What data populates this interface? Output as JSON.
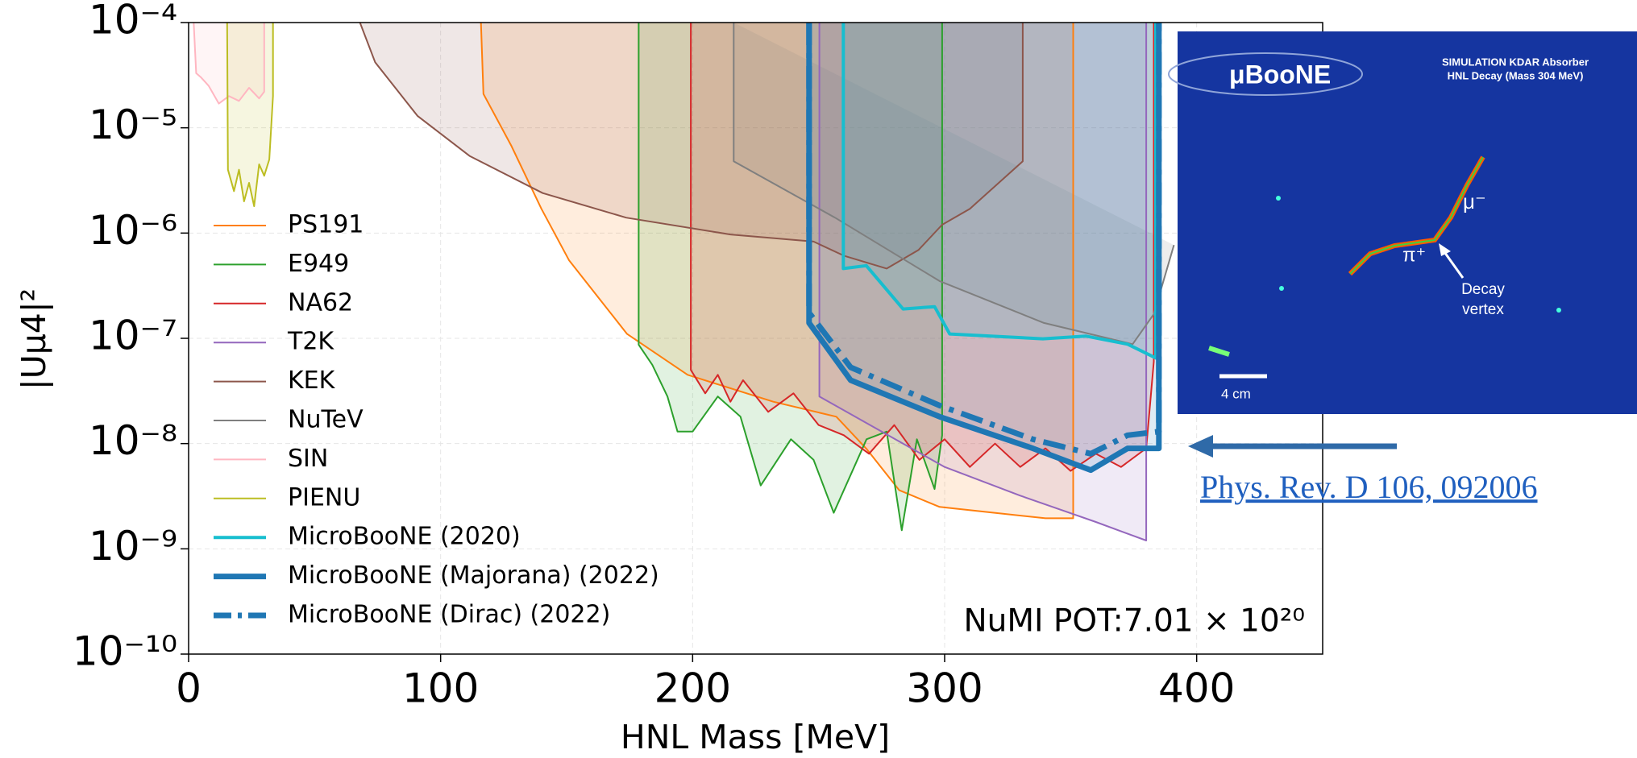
{
  "chart_data": {
    "type": "line",
    "xlabel": "HNL Mass [MeV]",
    "ylabel": "|Uμ4|²",
    "annotation": "NuMI POT:7.01 × 10²⁰",
    "yscale": "log",
    "grid": true,
    "legend": "lower left",
    "xlim": [
      0,
      450
    ],
    "xticks": [
      0,
      100,
      200,
      300,
      400
    ],
    "ylim": [
      1e-10,
      0.0001
    ],
    "yticks": [
      {
        "value": 0.0001,
        "label": "10⁻⁴"
      },
      {
        "value": 1e-05,
        "label": "10⁻⁵"
      },
      {
        "value": 1e-06,
        "label": "10⁻⁶"
      },
      {
        "value": 1e-07,
        "label": "10⁻⁷"
      },
      {
        "value": 1e-08,
        "label": "10⁻⁸"
      },
      {
        "value": 1e-09,
        "label": "10⁻⁹"
      },
      {
        "value": 1e-10,
        "label": "10⁻¹⁰"
      }
    ],
    "series": [
      {
        "name": "PS191",
        "color": "#ff7f0e",
        "fill": true,
        "linewidth": 2,
        "x": [
          116,
          117,
          128,
          140,
          151,
          174,
          198,
          232,
          257,
          269,
          282,
          298,
          340,
          351,
          351
        ],
        "values": [
          0.0001,
          2.1e-05,
          6.8e-06,
          1.7e-06,
          5.5e-07,
          1.1e-07,
          4.5e-08,
          2.5e-08,
          1.8e-08,
          8.9e-09,
          3.6e-09,
          2.5e-09,
          1.95e-09,
          1.95e-09,
          0.0001
        ]
      },
      {
        "name": "E949",
        "color": "#2ca02c",
        "fill": true,
        "linewidth": 2,
        "x": [
          178.6,
          178.6,
          184,
          190,
          194,
          200,
          210,
          219,
          227,
          239,
          248,
          256,
          269,
          277,
          283,
          289,
          296,
          299,
          299
        ],
        "values": [
          0.0001,
          8.7e-08,
          5.6e-08,
          2.8e-08,
          1.3e-08,
          1.3e-08,
          2.8e-08,
          1.8e-08,
          4e-09,
          1.1e-08,
          7e-09,
          2.2e-09,
          1.1e-08,
          1.3e-08,
          1.5e-09,
          1.1e-08,
          3.7e-09,
          1.2e-08,
          0.0001
        ]
      },
      {
        "name": "NA62",
        "color": "#d62728",
        "fill": true,
        "linewidth": 2,
        "x": [
          199.3,
          199.3,
          205,
          210,
          215,
          220,
          230,
          240,
          250,
          260,
          270,
          280,
          290,
          300,
          310,
          320,
          330,
          340,
          350,
          360,
          370,
          380,
          383,
          383
        ],
        "values": [
          0.0001,
          5e-08,
          3e-08,
          4.5e-08,
          2.5e-08,
          4e-08,
          2e-08,
          3e-08,
          1.5e-08,
          1.2e-08,
          8e-09,
          1.5e-08,
          7e-09,
          1.1e-08,
          6e-09,
          1e-08,
          6e-09,
          9e-09,
          5.5e-09,
          8e-09,
          6e-09,
          9e-09,
          6e-08,
          0.0001
        ]
      },
      {
        "name": "T2K",
        "color": "#9467bd",
        "fill": true,
        "linewidth": 2,
        "x": [
          250.3,
          250.3,
          275,
          300,
          330,
          360,
          380,
          380
        ],
        "values": [
          0.0001,
          2.8e-08,
          1.3e-08,
          6e-09,
          3.2e-09,
          1.8e-09,
          1.2e-09,
          0.0001
        ]
      },
      {
        "name": "KEK",
        "color": "#8c564b",
        "fill": true,
        "linewidth": 2,
        "x": [
          68,
          74,
          90.8,
          111.5,
          140.5,
          173.6,
          215,
          248,
          260,
          277,
          289.6,
          299,
          310,
          331,
          331
        ],
        "values": [
          0.0001,
          4.2e-05,
          1.3e-05,
          5.4e-06,
          2.4e-06,
          1.4e-06,
          9.7e-07,
          8.3e-07,
          6.1e-07,
          4.6e-07,
          6.9e-07,
          1.2e-06,
          1.7e-06,
          4.8e-06,
          0.0001
        ]
      },
      {
        "name": "NuTeV",
        "color": "#7f7f7f",
        "fill": true,
        "linewidth": 2,
        "x": [
          216.3,
          216.3,
          256.5,
          298,
          339.4,
          374.6,
          383,
          391
        ],
        "values": [
          0.0001,
          4.8e-06,
          1.4e-06,
          3.5e-07,
          1.4e-07,
          8.8e-08,
          1.7e-07,
          7.7e-07
        ]
      },
      {
        "name": "SIN",
        "color": "#ffb6c1",
        "fill": true,
        "linewidth": 2,
        "x": [
          2,
          3,
          5,
          8,
          12,
          16,
          20,
          24,
          28,
          30,
          30
        ],
        "values": [
          0.0001,
          3.3e-05,
          3e-05,
          2.5e-05,
          1.7e-05,
          2e-05,
          1.8e-05,
          2.4e-05,
          1.9e-05,
          2.2e-05,
          0.0001
        ]
      },
      {
        "name": "PIENU",
        "color": "#bcbd22",
        "fill": true,
        "linewidth": 2,
        "x": [
          15.3,
          15.6,
          18,
          20,
          22,
          24,
          26,
          28,
          30,
          32,
          33.5,
          33.5
        ],
        "values": [
          0.0001,
          4e-06,
          2.5e-06,
          4e-06,
          2e-06,
          3e-06,
          1.8e-06,
          4.5e-06,
          3.5e-06,
          5e-06,
          2e-05,
          0.0001
        ]
      },
      {
        "name": "MicroBooNE (2020)",
        "color": "#17becf",
        "fill": true,
        "linewidth": 4,
        "x": [
          259.8,
          259.8,
          268.9,
          283.5,
          296,
          302,
          339,
          356,
          372.6,
          383.8,
          383.8
        ],
        "values": [
          0.0001,
          4.6e-07,
          4.9e-07,
          1.9e-07,
          2e-07,
          1.1e-07,
          9.9e-08,
          1.05e-07,
          8.8e-08,
          6.5e-08,
          0.0001
        ]
      },
      {
        "name": "MicroBooNE (Majorana) (2022)",
        "color": "#1f77b4",
        "fill": true,
        "linewidth": 7,
        "x": [
          246.2,
          246.2,
          262.7,
          298,
          335,
          358,
          372.6,
          385,
          385
        ],
        "values": [
          0.0001,
          1.4e-07,
          4e-08,
          1.8e-08,
          9e-09,
          5.6e-09,
          9e-09,
          9e-09,
          0.0001
        ]
      },
      {
        "name": "MicroBooNE (Dirac) (2022)",
        "color": "#1f77b4",
        "fill": false,
        "linewidth": 7,
        "linestyle": "dashdot",
        "x": [
          246.2,
          246.2,
          262.7,
          298,
          335,
          358,
          372.6,
          385,
          385
        ],
        "values": [
          0.0001,
          1.75e-07,
          5.3e-08,
          2.3e-08,
          1.1e-08,
          8e-09,
          1.2e-08,
          1.3e-08,
          0.0001
        ]
      }
    ]
  },
  "inset": {
    "logo": "μBooNE",
    "caption": [
      "SIMULATION KDAR Absorber",
      "HNL Decay (Mass 304 MeV)"
    ],
    "muon": "μ⁻",
    "pion": "π⁺",
    "vertex": [
      "Decay",
      "vertex"
    ],
    "scale": "4 cm"
  },
  "link": "Phys. Rev. D 106, 092006"
}
